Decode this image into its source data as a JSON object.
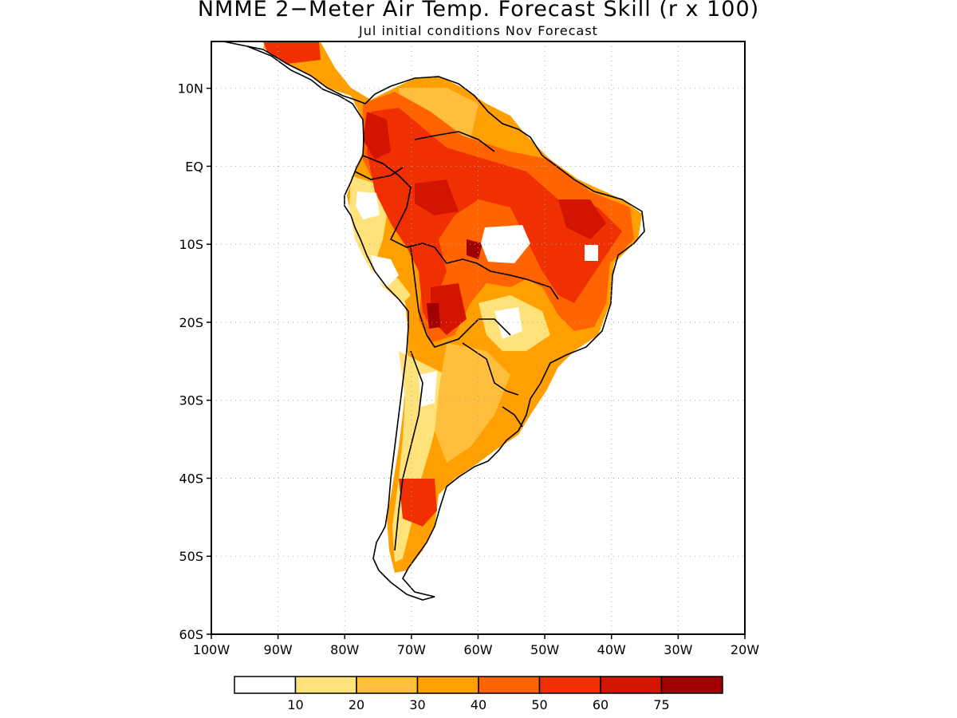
{
  "title": "NMME 2−Meter Air Temp. Forecast Skill (r x 100)",
  "subtitle": "Jul initial conditions  Nov Forecast",
  "map": {
    "lon_range": [
      -100,
      -20
    ],
    "lat_range": [
      -60,
      16
    ],
    "lat_ticks": [
      {
        "value": 10,
        "label": "10N"
      },
      {
        "value": 0,
        "label": "EQ"
      },
      {
        "value": -10,
        "label": "10S"
      },
      {
        "value": -20,
        "label": "20S"
      },
      {
        "value": -30,
        "label": "30S"
      },
      {
        "value": -40,
        "label": "40S"
      },
      {
        "value": -50,
        "label": "50S"
      },
      {
        "value": -60,
        "label": "60S"
      }
    ],
    "lon_ticks": [
      {
        "value": -100,
        "label": "100W"
      },
      {
        "value": -90,
        "label": "90W"
      },
      {
        "value": -80,
        "label": "80W"
      },
      {
        "value": -70,
        "label": "70W"
      },
      {
        "value": -60,
        "label": "60W"
      },
      {
        "value": -50,
        "label": "50W"
      },
      {
        "value": -40,
        "label": "40W"
      },
      {
        "value": -30,
        "label": "30W"
      },
      {
        "value": -20,
        "label": "20W"
      }
    ],
    "grid": "dotted"
  },
  "legend": {
    "colors": [
      "#ffffff",
      "#ffe37a",
      "#ffbf3c",
      "#ffa000",
      "#ff6400",
      "#f03000",
      "#d21400",
      "#a00000"
    ],
    "labels": [
      "10",
      "20",
      "30",
      "40",
      "50",
      "60",
      "75"
    ]
  }
}
